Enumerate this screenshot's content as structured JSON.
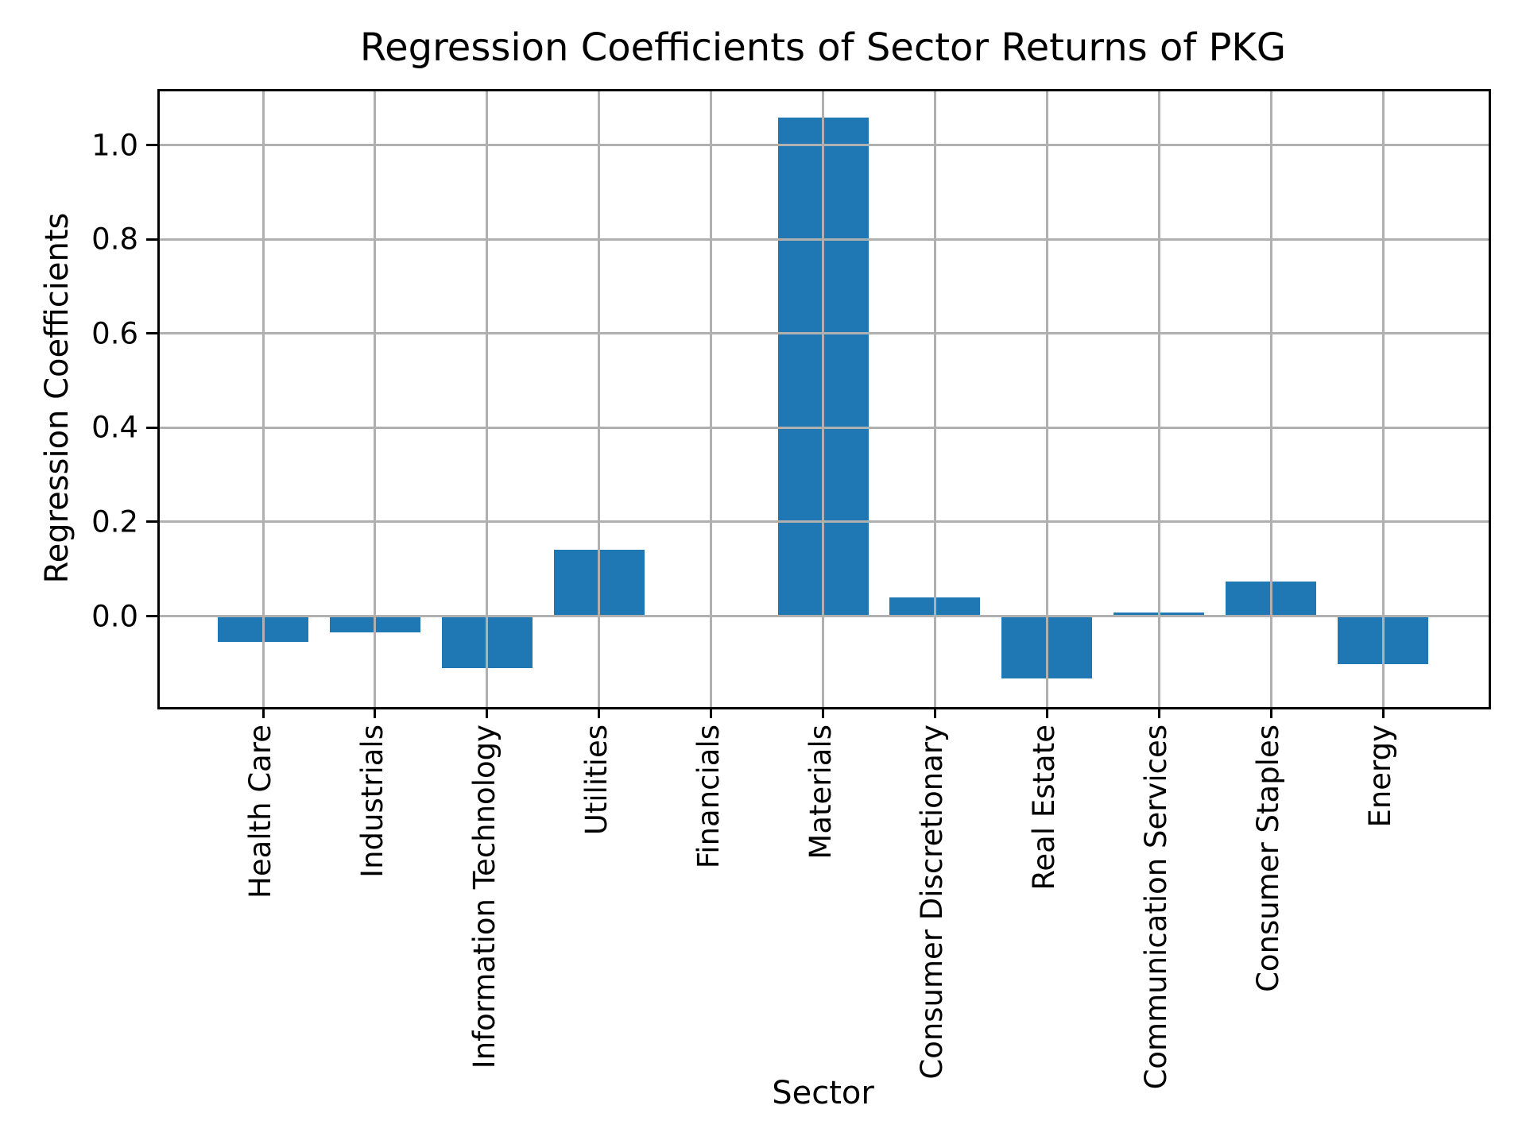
{
  "chart_data": {
    "type": "bar",
    "title": "Regression Coefficients of Sector Returns of PKG",
    "xlabel": "Sector",
    "ylabel": "Regression Coefficients",
    "categories": [
      "Health Care",
      "Industrials",
      "Information Technology",
      "Utilities",
      "Financials",
      "Materials",
      "Consumer Discretionary",
      "Real Estate",
      "Communication Services",
      "Consumer Staples",
      "Energy"
    ],
    "values": [
      -0.055,
      -0.034,
      -0.111,
      0.141,
      0.0,
      1.059,
      0.039,
      -0.133,
      0.008,
      0.073,
      -0.102
    ],
    "yticks": [
      0.0,
      0.2,
      0.4,
      0.6,
      0.8,
      1.0
    ],
    "ytick_labels": [
      "0.0",
      "0.2",
      "0.4",
      "0.6",
      "0.8",
      "1.0"
    ],
    "ylim": [
      -0.193,
      1.119
    ],
    "grid": true,
    "legend": false,
    "bar_color": "#1f77b4",
    "grid_color": "#b0b0b0",
    "spine_color": "#000000",
    "background_color": "#ffffff"
  }
}
